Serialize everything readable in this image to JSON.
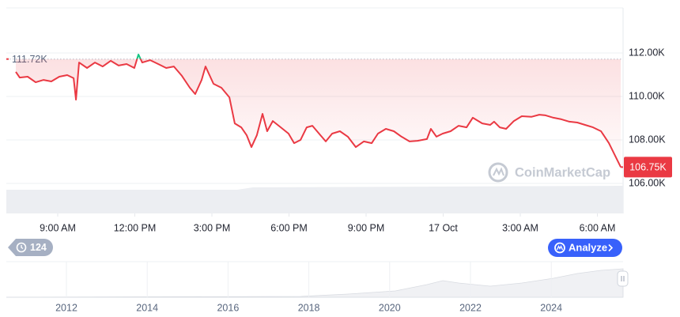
{
  "chart_data": {
    "type": "line",
    "x": [
      7.37,
      7.52,
      7.83,
      8.14,
      8.45,
      8.75,
      9.06,
      9.37,
      9.62,
      9.71,
      9.83,
      10.14,
      10.45,
      10.75,
      11.06,
      11.37,
      11.68,
      11.98,
      12.14,
      12.29,
      12.6,
      12.91,
      13.22,
      13.52,
      13.83,
      14.14,
      14.35,
      14.6,
      14.75,
      15.06,
      15.37,
      15.68,
      15.89,
      16.14,
      16.35,
      16.54,
      16.75,
      16.97,
      17.15,
      17.37,
      17.68,
      17.98,
      18.2,
      18.45,
      18.69,
      18.91,
      19.22,
      19.43,
      19.68,
      19.98,
      20.29,
      20.6,
      20.91,
      21.22,
      21.46,
      21.77,
      22.08,
      22.38,
      22.69,
      23,
      23.37,
      23.52,
      23.74,
      23.98,
      24.29,
      24.6,
      24.91,
      25.15,
      25.52,
      25.83,
      25.98,
      26.2,
      26.45,
      26.75,
      27.06,
      27.43,
      27.74,
      27.98,
      28.29,
      28.6,
      28.91,
      29.22,
      29.52,
      29.83,
      30.14,
      30.45,
      30.75,
      30.91
    ],
    "values": [
      111130,
      110870,
      110910,
      110650,
      110760,
      110690,
      110910,
      110980,
      110840,
      109850,
      111560,
      111310,
      111560,
      111380,
      111640,
      111420,
      111490,
      111310,
      111930,
      111560,
      111670,
      111490,
      111310,
      111380,
      110950,
      110400,
      110110,
      110760,
      111380,
      110580,
      110400,
      109960,
      108760,
      108580,
      108220,
      107670,
      108220,
      109200,
      108400,
      108870,
      108580,
      108290,
      107850,
      108000,
      108580,
      108650,
      108220,
      107930,
      108290,
      108400,
      108150,
      107670,
      107930,
      107850,
      108290,
      108510,
      108400,
      108150,
      107930,
      107960,
      108040,
      108510,
      108150,
      108290,
      108400,
      108650,
      108580,
      109020,
      108760,
      108690,
      108840,
      108580,
      108510,
      108870,
      109090,
      109060,
      109160,
      109130,
      109020,
      108950,
      108840,
      108800,
      108690,
      108580,
      108400,
      107850,
      107130,
      106750
    ],
    "color": "#ea3943",
    "up_color": "#16c784",
    "xlim": [
      7,
      31
    ],
    "xticks": [
      {
        "value": 9,
        "label": "9:00 AM"
      },
      {
        "value": 12,
        "label": "12:00 PM"
      },
      {
        "value": 15,
        "label": "3:00 PM"
      },
      {
        "value": 18,
        "label": "6:00 PM"
      },
      {
        "value": 21,
        "label": "9:00 PM"
      },
      {
        "value": 24,
        "label": "17 Oct"
      },
      {
        "value": 27,
        "label": "3:00 AM"
      },
      {
        "value": 30,
        "label": "6:00 AM"
      }
    ],
    "ylim": [
      106000,
      114000
    ],
    "yticks": [
      {
        "value": 106000,
        "label": "106.00K"
      },
      {
        "value": 108000,
        "label": "108.00K"
      },
      {
        "value": 110000,
        "label": "110.00K"
      },
      {
        "value": 112000,
        "label": "112.00K"
      }
    ],
    "grid": true,
    "reference": {
      "value": 111720,
      "label": "111.72K"
    },
    "current_price": {
      "value": 106750,
      "label": "106.75K"
    }
  },
  "ui": {
    "watermark": "CoinMarketCap",
    "badge": "124",
    "button": "Analyze",
    "navigator_labels": [
      "2012",
      "2014",
      "2016",
      "2018",
      "2020",
      "2022",
      "2024"
    ]
  }
}
